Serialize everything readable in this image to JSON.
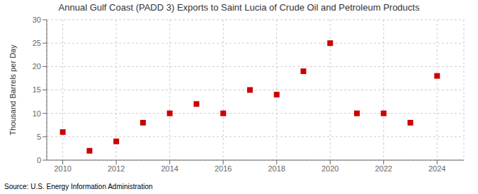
{
  "chart_data": {
    "type": "scatter",
    "title": "Annual Gulf Coast (PADD 3) Exports to Saint Lucia of Crude Oil and Petroleum Products",
    "y_label": "Thousand Barrels per Day",
    "annotations": [
      "Source: U.S. Energy Information Administration"
    ],
    "x": [
      2010,
      2011,
      2012,
      2013,
      2014,
      2015,
      2016,
      2017,
      2018,
      2019,
      2020,
      2021,
      2022,
      2023,
      2024
    ],
    "values": [
      6,
      2,
      4,
      8,
      10,
      12,
      10,
      15,
      14,
      19,
      25,
      10,
      10,
      8,
      18
    ],
    "color": "#cc0000",
    "marker": "square",
    "xlim": [
      2009.4,
      2025.0
    ],
    "xticks": [
      2010,
      2012,
      2014,
      2016,
      2018,
      2020,
      2022,
      2024
    ],
    "ylim": [
      0,
      30
    ],
    "yticks": [
      0,
      5,
      10,
      15,
      20,
      25,
      30
    ],
    "grid": true
  }
}
